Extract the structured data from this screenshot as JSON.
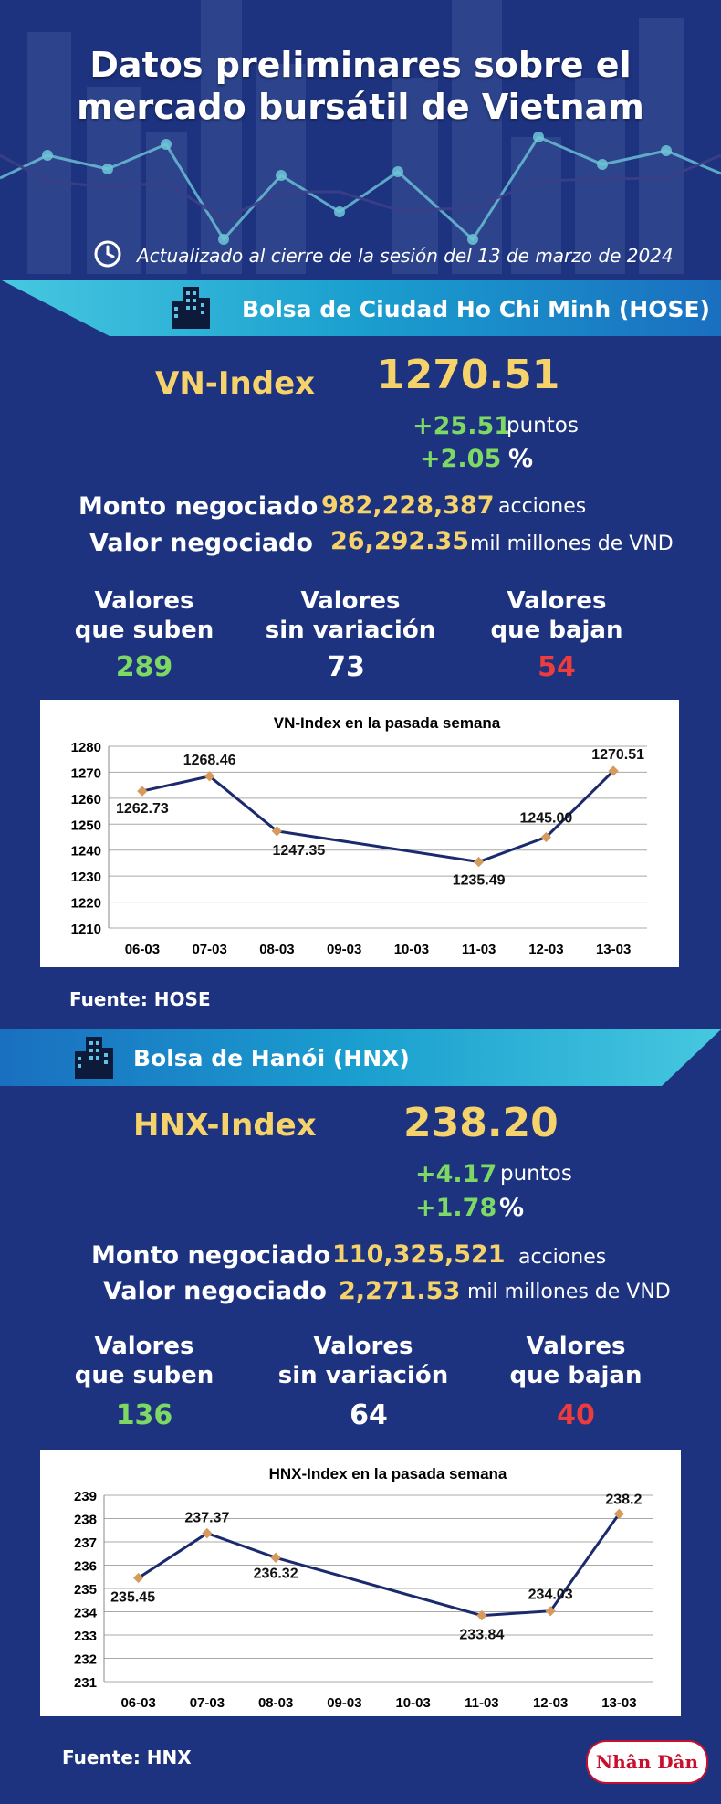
{
  "header": {
    "title_line1": "Datos preliminares sobre el",
    "title_line2": "mercado bursátil de Vietnam",
    "updated": "Actualizado al cierre de la sesión del 13 de marzo de 2024"
  },
  "hose": {
    "exchange": "Bolsa de Ciudad Ho Chi Minh (HOSE)",
    "index_name": "VN-Index",
    "index_value": "1270.51",
    "change_points": "+25.51",
    "points_unit": "puntos",
    "change_pct": "+2.05",
    "pct_unit": "%",
    "volume_label": "Monto negociado",
    "volume_value": "982,228,387",
    "volume_unit": "acciones",
    "value_label": "Valor negociado",
    "value_value": "26,292.35",
    "value_unit": "mil millones de VND",
    "up_label": "Valores\nque suben",
    "up_value": "289",
    "flat_label": "Valores\nsin variación",
    "flat_value": "73",
    "down_label": "Valores\nque bajan",
    "down_value": "54",
    "source": "Fuente: HOSE"
  },
  "hnx": {
    "exchange": "Bolsa de Hanói (HNX)",
    "index_name": "HNX-Index",
    "index_value": "238.20",
    "change_points": "+4.17",
    "points_unit": "puntos",
    "change_pct": "+1.78",
    "pct_unit": "%",
    "volume_label": "Monto negociado",
    "volume_value": "110,325,521",
    "volume_unit": "acciones",
    "value_label": "Valor negociado",
    "value_value": "2,271.53",
    "value_unit": "mil millones de VND",
    "up_label": "Valores\nque suben",
    "up_value": "136",
    "flat_label": "Valores\nsin variación",
    "flat_value": "64",
    "down_label": "Valores\nque bajan",
    "down_value": "40",
    "source": "Fuente:  HNX"
  },
  "logo": "Nhân Dân",
  "icons": {
    "clock": "clock-icon",
    "building": "building-icon"
  },
  "colors": {
    "background": "#1e3380",
    "gold": "#f5d36a",
    "up": "#7dd864",
    "down": "#ee3b3b",
    "banner": "#1da3cf",
    "line": "#1a2a6c",
    "marker": "#d59a5c"
  },
  "chart_data": [
    {
      "type": "line",
      "title": "VN-Index en la pasada semana",
      "categories": [
        "06-03",
        "07-03",
        "08-03",
        "09-03",
        "10-03",
        "11-03",
        "12-03",
        "13-03"
      ],
      "x_points": [
        "06-03",
        "07-03",
        "08-03",
        "11-03",
        "12-03",
        "13-03"
      ],
      "values": [
        1262.73,
        1268.46,
        1247.35,
        1235.49,
        1245.0,
        1270.51
      ],
      "labels": [
        "1262.73",
        "1268.46",
        "1247.35",
        "1235.49",
        "1245.00",
        "1270.51"
      ],
      "yticks": [
        "1280",
        "1270",
        "1260",
        "1250",
        "1240",
        "1230",
        "1220",
        "1210"
      ],
      "ylim": [
        1210,
        1280
      ],
      "grid": true
    },
    {
      "type": "line",
      "title": "HNX-Index en la pasada semana",
      "categories": [
        "06-03",
        "07-03",
        "08-03",
        "09-03",
        "10-03",
        "11-03",
        "12-03",
        "13-03"
      ],
      "x_points": [
        "06-03",
        "07-03",
        "08-03",
        "11-03",
        "12-03",
        "13-03"
      ],
      "values": [
        235.45,
        237.37,
        236.32,
        233.84,
        234.03,
        238.2
      ],
      "labels": [
        "235.45",
        "237.37",
        "236.32",
        "233.84",
        "234.03",
        "238.2"
      ],
      "yticks": [
        "239",
        "238",
        "237",
        "236",
        "235",
        "234",
        "233",
        "232",
        "231"
      ],
      "ylim": [
        231,
        239
      ],
      "grid": true
    }
  ]
}
